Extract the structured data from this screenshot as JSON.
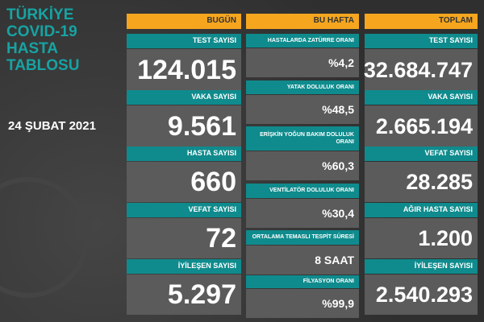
{
  "title": {
    "lines": [
      "TÜRKİYE",
      "COVID-19",
      "HASTA",
      "TABLOSU"
    ],
    "date": "24 ŞUBAT 2021"
  },
  "columns": [
    {
      "header": "BUGÜN",
      "cards": [
        {
          "label": "TEST SAYISI",
          "value": "124.015"
        },
        {
          "label": "VAKA SAYISI",
          "value": "9.561"
        },
        {
          "label": "HASTA SAYISI",
          "value": "660"
        },
        {
          "label": "VEFAT SAYISI",
          "value": "72"
        },
        {
          "label": "İYİLEŞEN SAYISI",
          "value": "5.297"
        }
      ]
    },
    {
      "header": "BU HAFTA",
      "cards": [
        {
          "label": "HASTALARDA ZATÜRRE ORANI",
          "value": "%4,2"
        },
        {
          "label": "YATAK DOLULUK ORANI",
          "value": "%48,5"
        },
        {
          "label": "ERİŞKİN YOĞUN BAKIM DOLULUK ORANI",
          "value": "%60,3"
        },
        {
          "label": "VENTİLATÖR DOLULUK ORANI",
          "value": "%30,4"
        },
        {
          "label": "ORTALAMA TEMASLI TESPİT SÜRESİ",
          "value": "8 SAAT"
        },
        {
          "label": "FİLYASYON ORANI",
          "value": "%99,9"
        }
      ]
    },
    {
      "header": "TOPLAM",
      "cards": [
        {
          "label": "TEST SAYISI",
          "value": "32.684.747"
        },
        {
          "label": "VAKA SAYISI",
          "value": "2.665.194"
        },
        {
          "label": "VEFAT SAYISI",
          "value": "28.285"
        },
        {
          "label": "AĞIR HASTA SAYISI",
          "value": "1.200"
        },
        {
          "label": "İYİLEŞEN SAYISI",
          "value": "2.540.293"
        }
      ]
    }
  ]
}
